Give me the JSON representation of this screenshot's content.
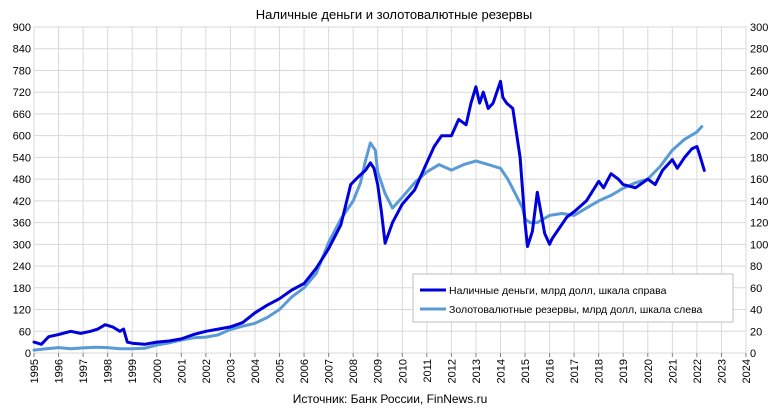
{
  "chart_data": {
    "type": "line",
    "title": "Наличные деньги и золотовалютные резервы",
    "source": "Источник: Банк России, FinNews.ru",
    "x_ticks": [
      "1995",
      "1996",
      "1997",
      "1998",
      "1999",
      "2000",
      "2001",
      "2002",
      "2003",
      "2004",
      "2005",
      "2006",
      "2007",
      "2008",
      "2009",
      "2010",
      "2011",
      "2012",
      "2013",
      "2014",
      "2015",
      "2016",
      "2017",
      "2018",
      "2019",
      "2020",
      "2021",
      "2022",
      "2023",
      "2024"
    ],
    "left_ticks": [
      "0",
      "60",
      "120",
      "180",
      "240",
      "300",
      "360",
      "420",
      "480",
      "540",
      "600",
      "660",
      "720",
      "780",
      "840",
      "900"
    ],
    "right_ticks": [
      "0",
      "20",
      "40",
      "60",
      "80",
      "100",
      "120",
      "140",
      "160",
      "180",
      "200",
      "220",
      "240",
      "260",
      "280",
      "300"
    ],
    "xlim": [
      1995,
      2024
    ],
    "ylim_left": [
      0,
      900
    ],
    "ylim_right": [
      0,
      300
    ],
    "grid": true,
    "legend_position": "right",
    "series": [
      {
        "name": "Наличные деньги, млрд долл, шкала справа",
        "axis": "right",
        "color": "#0000dd",
        "x": [
          1995.0,
          1995.3,
          1995.6,
          1996.0,
          1996.5,
          1996.9,
          1997.3,
          1997.6,
          1997.9,
          1998.2,
          1998.5,
          1998.65,
          1998.8,
          1999.0,
          1999.5,
          2000.0,
          2000.5,
          2001.0,
          2001.5,
          2002.0,
          2002.5,
          2003.0,
          2003.5,
          2004.0,
          2004.5,
          2005.0,
          2005.5,
          2006.0,
          2006.5,
          2007.0,
          2007.5,
          2007.9,
          2008.2,
          2008.5,
          2008.7,
          2008.85,
          2009.0,
          2009.15,
          2009.3,
          2009.6,
          2010.0,
          2010.5,
          2011.0,
          2011.3,
          2011.6,
          2012.0,
          2012.3,
          2012.6,
          2012.8,
          2013.0,
          2013.15,
          2013.3,
          2013.5,
          2013.7,
          2013.85,
          2014.0,
          2014.1,
          2014.25,
          2014.5,
          2014.8,
          2015.0,
          2015.1,
          2015.3,
          2015.5,
          2015.8,
          2016.0,
          2016.1,
          2016.4,
          2016.7,
          2017.0,
          2017.5,
          2018.0,
          2018.2,
          2018.5,
          2018.8,
          2019.0,
          2019.5,
          2020.0,
          2020.3,
          2020.6,
          2021.0,
          2021.2,
          2021.5,
          2021.8,
          2022.0,
          2022.1,
          2022.3
        ],
        "values": [
          10,
          8,
          15,
          17,
          20,
          18,
          20,
          22,
          26,
          24,
          20,
          22,
          10,
          9,
          8,
          10,
          11,
          13,
          17,
          20,
          22,
          24,
          28,
          37,
          44,
          50,
          58,
          64,
          78,
          96,
          118,
          155,
          162,
          168,
          175,
          170,
          155,
          130,
          101,
          120,
          137,
          150,
          175,
          190,
          200,
          200,
          215,
          210,
          230,
          245,
          230,
          240,
          225,
          230,
          240,
          250,
          235,
          230,
          225,
          180,
          120,
          98,
          112,
          148,
          110,
          100,
          105,
          115,
          125,
          130,
          140,
          158,
          152,
          165,
          160,
          155,
          152,
          160,
          155,
          168,
          178,
          170,
          180,
          188,
          190,
          183,
          168
        ]
      },
      {
        "name": "Золотовалютные резервы, млрд долл, шкала слева",
        "axis": "left",
        "color": "#5b9bd5",
        "x": [
          1995.0,
          1995.5,
          1996.0,
          1996.5,
          1997.0,
          1997.5,
          1998.0,
          1998.5,
          1999.0,
          1999.5,
          2000.0,
          2000.5,
          2001.0,
          2001.5,
          2002.0,
          2002.5,
          2003.0,
          2003.5,
          2004.0,
          2004.5,
          2005.0,
          2005.5,
          2006.0,
          2006.5,
          2007.0,
          2007.5,
          2008.0,
          2008.3,
          2008.5,
          2008.7,
          2008.9,
          2009.0,
          2009.3,
          2009.6,
          2010.0,
          2010.5,
          2011.0,
          2011.5,
          2012.0,
          2012.5,
          2013.0,
          2013.5,
          2014.0,
          2014.3,
          2014.6,
          2014.9,
          2015.0,
          2015.2,
          2015.5,
          2016.0,
          2016.5,
          2017.0,
          2017.5,
          2018.0,
          2018.5,
          2019.0,
          2019.5,
          2020.0,
          2020.5,
          2021.0,
          2021.5,
          2022.0,
          2022.2
        ],
        "values": [
          8,
          12,
          15,
          12,
          14,
          16,
          15,
          12,
          12,
          13,
          22,
          28,
          36,
          42,
          44,
          50,
          65,
          74,
          82,
          98,
          120,
          155,
          180,
          220,
          305,
          370,
          420,
          470,
          530,
          580,
          560,
          500,
          440,
          400,
          430,
          470,
          500,
          520,
          505,
          520,
          530,
          520,
          510,
          480,
          440,
          400,
          370,
          360,
          360,
          380,
          385,
          380,
          400,
          420,
          435,
          455,
          470,
          480,
          515,
          560,
          590,
          610,
          625
        ]
      }
    ]
  }
}
